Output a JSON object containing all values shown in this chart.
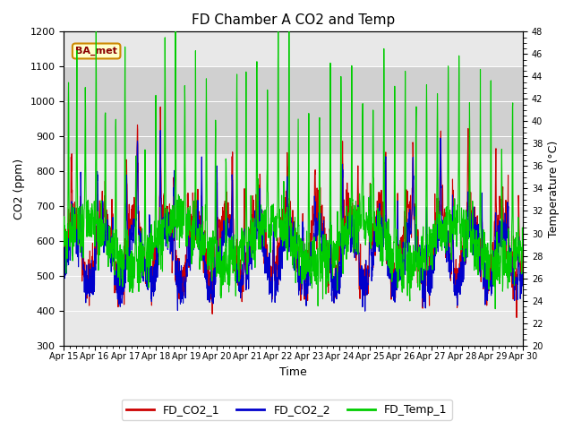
{
  "title": "FD Chamber A CO2 and Temp",
  "xlabel": "Time",
  "ylabel_left": "CO2 (ppm)",
  "ylabel_right": "Temperature (°C)",
  "ylim_left": [
    300,
    1200
  ],
  "ylim_right": [
    20,
    48
  ],
  "yticks_left": [
    300,
    400,
    500,
    600,
    700,
    800,
    900,
    1000,
    1100,
    1200
  ],
  "yticks_right": [
    20,
    22,
    24,
    26,
    28,
    30,
    32,
    34,
    36,
    38,
    40,
    42,
    44,
    46,
    48
  ],
  "xticklabels": [
    "Apr 15",
    "Apr 16",
    "Apr 17",
    "Apr 18",
    "Apr 19",
    "Apr 20",
    "Apr 21",
    "Apr 22",
    "Apr 23",
    "Apr 24",
    "Apr 25",
    "Apr 26",
    "Apr 27",
    "Apr 28",
    "Apr 29",
    "Apr 30"
  ],
  "shading_band": [
    850,
    1100
  ],
  "annotation_text": "BA_met",
  "line_colors": {
    "FD_CO2_1": "#cc0000",
    "FD_CO2_2": "#0000cc",
    "FD_Temp_1": "#00cc00"
  },
  "legend_labels": [
    "FD_CO2_1",
    "FD_CO2_2",
    "FD_Temp_1"
  ],
  "plot_bg_color": "#ffffff",
  "axes_bg_color": "#e8e8e8",
  "band_color": "#d0d0d0"
}
